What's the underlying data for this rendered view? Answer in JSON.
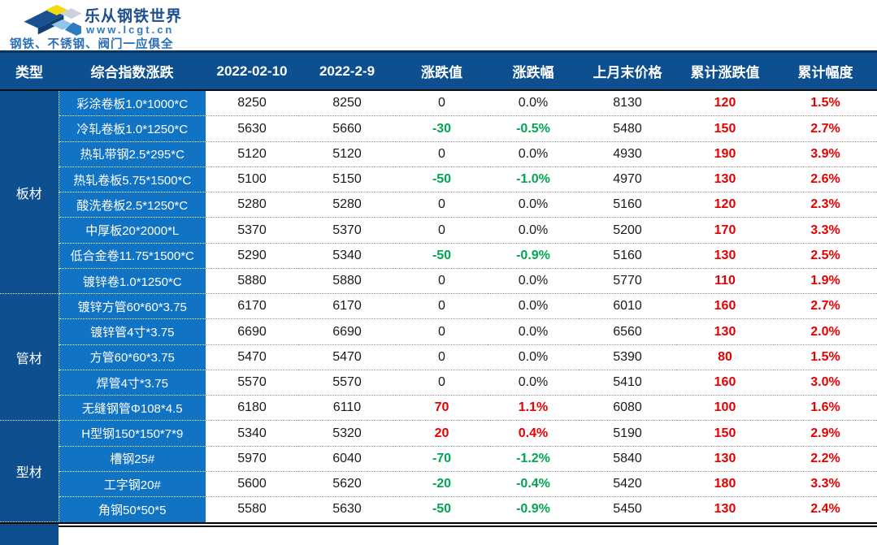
{
  "brand": {
    "name": "乐从钢铁世界",
    "website": "www.lcgt.cn",
    "slogan": "钢铁、不锈钢、阀门一应俱全"
  },
  "colors": {
    "header_blue": "#0e4f90",
    "item_blue": "#1173c4",
    "up_red": "#e60000",
    "down_green": "#00a651",
    "logo_yellow": "#f4d912"
  },
  "chart_data": {
    "type": "table",
    "columns": [
      "类型",
      "综合指数涨跌",
      "2022-02-10",
      "2022-2-9",
      "涨跌值",
      "涨跌幅",
      "上月末价格",
      "累计涨跌值",
      "累计幅度"
    ],
    "groups": [
      {
        "type": "板材",
        "rows": [
          {
            "name": "彩涂卷板1.0*1000*C",
            "d1": "8250",
            "d2": "8250",
            "chg": "0",
            "chg_pct": "0.0%",
            "last_month": "8130",
            "cum": "120",
            "cum_pct": "1.5%"
          },
          {
            "name": "冷轧卷板1.0*1250*C",
            "d1": "5630",
            "d2": "5660",
            "chg": "-30",
            "chg_pct": "-0.5%",
            "last_month": "5480",
            "cum": "150",
            "cum_pct": "2.7%"
          },
          {
            "name": "热轧带钢2.5*295*C",
            "d1": "5120",
            "d2": "5120",
            "chg": "0",
            "chg_pct": "0.0%",
            "last_month": "4930",
            "cum": "190",
            "cum_pct": "3.9%"
          },
          {
            "name": "热轧卷板5.75*1500*C",
            "d1": "5100",
            "d2": "5150",
            "chg": "-50",
            "chg_pct": "-1.0%",
            "last_month": "4970",
            "cum": "130",
            "cum_pct": "2.6%"
          },
          {
            "name": "酸洗卷板2.5*1250*C",
            "d1": "5280",
            "d2": "5280",
            "chg": "0",
            "chg_pct": "0.0%",
            "last_month": "5160",
            "cum": "120",
            "cum_pct": "2.3%"
          },
          {
            "name": "中厚板20*2000*L",
            "d1": "5370",
            "d2": "5370",
            "chg": "0",
            "chg_pct": "0.0%",
            "last_month": "5200",
            "cum": "170",
            "cum_pct": "3.3%"
          },
          {
            "name": "低合金卷11.75*1500*C",
            "d1": "5290",
            "d2": "5340",
            "chg": "-50",
            "chg_pct": "-0.9%",
            "last_month": "5160",
            "cum": "130",
            "cum_pct": "2.5%"
          },
          {
            "name": "镀锌卷1.0*1250*C",
            "d1": "5880",
            "d2": "5880",
            "chg": "0",
            "chg_pct": "0.0%",
            "last_month": "5770",
            "cum": "110",
            "cum_pct": "1.9%"
          }
        ]
      },
      {
        "type": "管材",
        "rows": [
          {
            "name": "镀锌方管60*60*3.75",
            "d1": "6170",
            "d2": "6170",
            "chg": "0",
            "chg_pct": "0.0%",
            "last_month": "6010",
            "cum": "160",
            "cum_pct": "2.7%"
          },
          {
            "name": "镀锌管4寸*3.75",
            "d1": "6690",
            "d2": "6690",
            "chg": "0",
            "chg_pct": "0.0%",
            "last_month": "6560",
            "cum": "130",
            "cum_pct": "2.0%"
          },
          {
            "name": "方管60*60*3.75",
            "d1": "5470",
            "d2": "5470",
            "chg": "0",
            "chg_pct": "0.0%",
            "last_month": "5390",
            "cum": "80",
            "cum_pct": "1.5%"
          },
          {
            "name": "焊管4寸*3.75",
            "d1": "5570",
            "d2": "5570",
            "chg": "0",
            "chg_pct": "0.0%",
            "last_month": "5410",
            "cum": "160",
            "cum_pct": "3.0%"
          },
          {
            "name": "无缝钢管Φ108*4.5",
            "d1": "6180",
            "d2": "6110",
            "chg": "70",
            "chg_pct": "1.1%",
            "last_month": "6080",
            "cum": "100",
            "cum_pct": "1.6%"
          }
        ]
      },
      {
        "type": "型材",
        "rows": [
          {
            "name": "H型钢150*150*7*9",
            "d1": "5340",
            "d2": "5320",
            "chg": "20",
            "chg_pct": "0.4%",
            "last_month": "5190",
            "cum": "150",
            "cum_pct": "2.9%"
          },
          {
            "name": "槽钢25#",
            "d1": "5970",
            "d2": "6040",
            "chg": "-70",
            "chg_pct": "-1.2%",
            "last_month": "5840",
            "cum": "130",
            "cum_pct": "2.2%"
          },
          {
            "name": "工字钢20#",
            "d1": "5600",
            "d2": "5620",
            "chg": "-20",
            "chg_pct": "-0.4%",
            "last_month": "5420",
            "cum": "180",
            "cum_pct": "3.3%"
          },
          {
            "name": "角钢50*50*5",
            "d1": "5580",
            "d2": "5630",
            "chg": "-50",
            "chg_pct": "-0.9%",
            "last_month": "5450",
            "cum": "130",
            "cum_pct": "2.4%"
          }
        ]
      }
    ]
  }
}
